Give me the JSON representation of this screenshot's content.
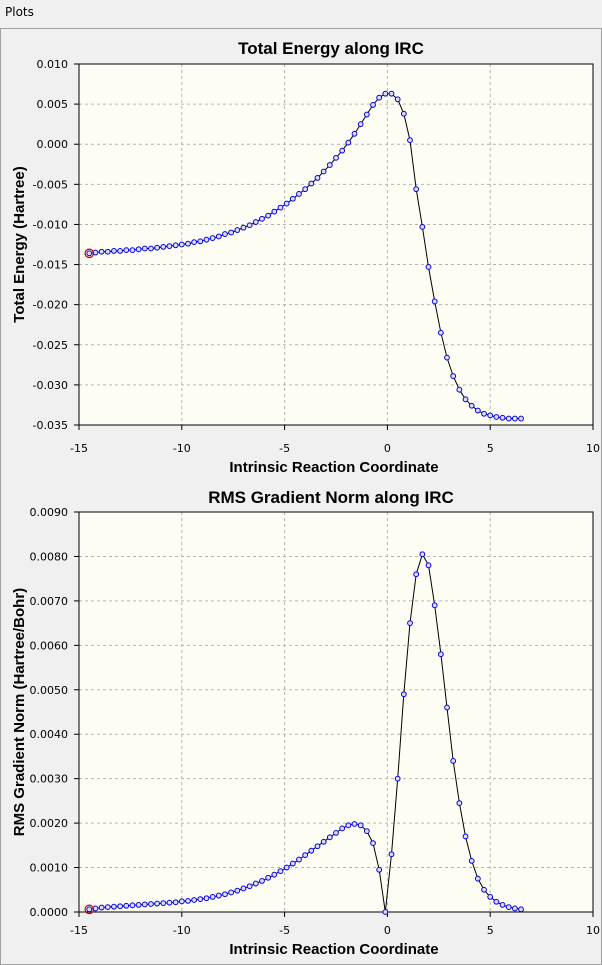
{
  "window": {
    "title": "Plots"
  },
  "chart_data": [
    {
      "type": "line",
      "title": "Total Energy along IRC",
      "xlabel": "Intrinsic Reaction Coordinate",
      "ylabel": "Total Energy (Hartree)",
      "xlim": [
        -15,
        10
      ],
      "ylim": [
        -0.035,
        0.01
      ],
      "xticks": [
        -15,
        -10,
        -5,
        0,
        5,
        10
      ],
      "xtick_labels": [
        "-15",
        "-10",
        "-5",
        "0",
        "5",
        "10"
      ],
      "yticks": [
        0.01,
        0.005,
        0.0,
        -0.005,
        -0.01,
        -0.015,
        -0.02,
        -0.025,
        -0.03,
        -0.035
      ],
      "ytick_labels": [
        "0.010",
        "0.005",
        "0.000",
        "-0.005",
        "-0.010",
        "-0.015",
        "-0.020",
        "-0.025",
        "-0.030",
        "-0.035"
      ],
      "grid": true,
      "highlight_point": [
        -14.5,
        -0.0136
      ],
      "x": [
        -14.5,
        -14.2,
        -13.9,
        -13.6,
        -13.3,
        -13.0,
        -12.7,
        -12.4,
        -12.1,
        -11.8,
        -11.5,
        -11.2,
        -10.9,
        -10.6,
        -10.3,
        -10.0,
        -9.7,
        -9.4,
        -9.1,
        -8.8,
        -8.5,
        -8.2,
        -7.9,
        -7.6,
        -7.3,
        -7.0,
        -6.7,
        -6.4,
        -6.1,
        -5.8,
        -5.5,
        -5.2,
        -4.9,
        -4.6,
        -4.3,
        -4.0,
        -3.7,
        -3.4,
        -3.1,
        -2.8,
        -2.5,
        -2.2,
        -1.9,
        -1.6,
        -1.3,
        -1.0,
        -0.7,
        -0.4,
        -0.1,
        0.2,
        0.5,
        0.8,
        1.1,
        1.4,
        1.7,
        2.0,
        2.3,
        2.6,
        2.9,
        3.2,
        3.5,
        3.8,
        4.1,
        4.4,
        4.7,
        5.0,
        5.3,
        5.6,
        5.9,
        6.2,
        6.5
      ],
      "values": [
        -0.0136,
        -0.0135,
        -0.0134,
        -0.0134,
        -0.0133,
        -0.0133,
        -0.0132,
        -0.0132,
        -0.0131,
        -0.013,
        -0.013,
        -0.0129,
        -0.0128,
        -0.0127,
        -0.0126,
        -0.0125,
        -0.0124,
        -0.0122,
        -0.0121,
        -0.0119,
        -0.0117,
        -0.0115,
        -0.0112,
        -0.011,
        -0.0107,
        -0.0104,
        -0.0101,
        -0.0097,
        -0.0093,
        -0.0089,
        -0.0084,
        -0.0079,
        -0.0074,
        -0.0068,
        -0.0062,
        -0.0056,
        -0.0049,
        -0.0042,
        -0.0034,
        -0.0026,
        -0.0017,
        -0.0008,
        0.0002,
        0.0013,
        0.0025,
        0.0037,
        0.0049,
        0.0058,
        0.0063,
        0.0063,
        0.0056,
        0.0038,
        0.0005,
        -0.0056,
        -0.0103,
        -0.0153,
        -0.0196,
        -0.0235,
        -0.0266,
        -0.0289,
        -0.0306,
        -0.0318,
        -0.0326,
        -0.0332,
        -0.0336,
        -0.0338,
        -0.034,
        -0.0341,
        -0.0342,
        -0.0342,
        -0.0342
      ]
    },
    {
      "type": "line",
      "title": "RMS Gradient Norm along IRC",
      "xlabel": "Intrinsic Reaction Coordinate",
      "ylabel": "RMS Gradient Norm (Hartree/Bohr)",
      "xlim": [
        -15,
        10
      ],
      "ylim": [
        0,
        0.009
      ],
      "xticks": [
        -15,
        -10,
        -5,
        0,
        5,
        10
      ],
      "xtick_labels": [
        "-15",
        "-10",
        "-5",
        "0",
        "5",
        "10"
      ],
      "yticks": [
        0.009,
        0.008,
        0.007,
        0.006,
        0.005,
        0.004,
        0.003,
        0.002,
        0.001,
        0.0
      ],
      "ytick_labels": [
        "0.0090",
        "0.0080",
        "0.0070",
        "0.0060",
        "0.0050",
        "0.0040",
        "0.0030",
        "0.0020",
        "0.0010",
        "0.0000"
      ],
      "grid": true,
      "highlight_point": [
        -14.5,
        6e-05
      ],
      "x": [
        -14.5,
        -14.2,
        -13.9,
        -13.6,
        -13.3,
        -13.0,
        -12.7,
        -12.4,
        -12.1,
        -11.8,
        -11.5,
        -11.2,
        -10.9,
        -10.6,
        -10.3,
        -10.0,
        -9.7,
        -9.4,
        -9.1,
        -8.8,
        -8.5,
        -8.2,
        -7.9,
        -7.6,
        -7.3,
        -7.0,
        -6.7,
        -6.4,
        -6.1,
        -5.8,
        -5.5,
        -5.2,
        -4.9,
        -4.6,
        -4.3,
        -4.0,
        -3.7,
        -3.4,
        -3.1,
        -2.8,
        -2.5,
        -2.2,
        -1.9,
        -1.6,
        -1.3,
        -1.0,
        -0.7,
        -0.4,
        -0.1,
        0.2,
        0.5,
        0.8,
        1.1,
        1.4,
        1.7,
        2.0,
        2.3,
        2.6,
        2.9,
        3.2,
        3.5,
        3.8,
        4.1,
        4.4,
        4.7,
        5.0,
        5.3,
        5.6,
        5.9,
        6.2,
        6.5
      ],
      "values": [
        6e-05,
        8e-05,
        0.0001,
        0.00011,
        0.00012,
        0.00013,
        0.00014,
        0.00015,
        0.00016,
        0.00017,
        0.00018,
        0.00019,
        0.0002,
        0.00021,
        0.00022,
        0.00024,
        0.00025,
        0.00027,
        0.00029,
        0.00031,
        0.00034,
        0.00037,
        0.0004,
        0.00044,
        0.00048,
        0.00053,
        0.00058,
        0.00064,
        0.0007,
        0.00077,
        0.00084,
        0.00092,
        0.001,
        0.00109,
        0.00118,
        0.00128,
        0.00138,
        0.00148,
        0.00158,
        0.00168,
        0.00178,
        0.00188,
        0.00195,
        0.00198,
        0.00195,
        0.00182,
        0.00155,
        0.00095,
        0.0,
        0.0013,
        0.003,
        0.0049,
        0.0065,
        0.0076,
        0.00805,
        0.0078,
        0.0069,
        0.0058,
        0.0046,
        0.0034,
        0.00245,
        0.0017,
        0.00115,
        0.00075,
        0.0005,
        0.00034,
        0.00023,
        0.00016,
        0.00011,
        8e-05,
        6e-05
      ]
    }
  ]
}
